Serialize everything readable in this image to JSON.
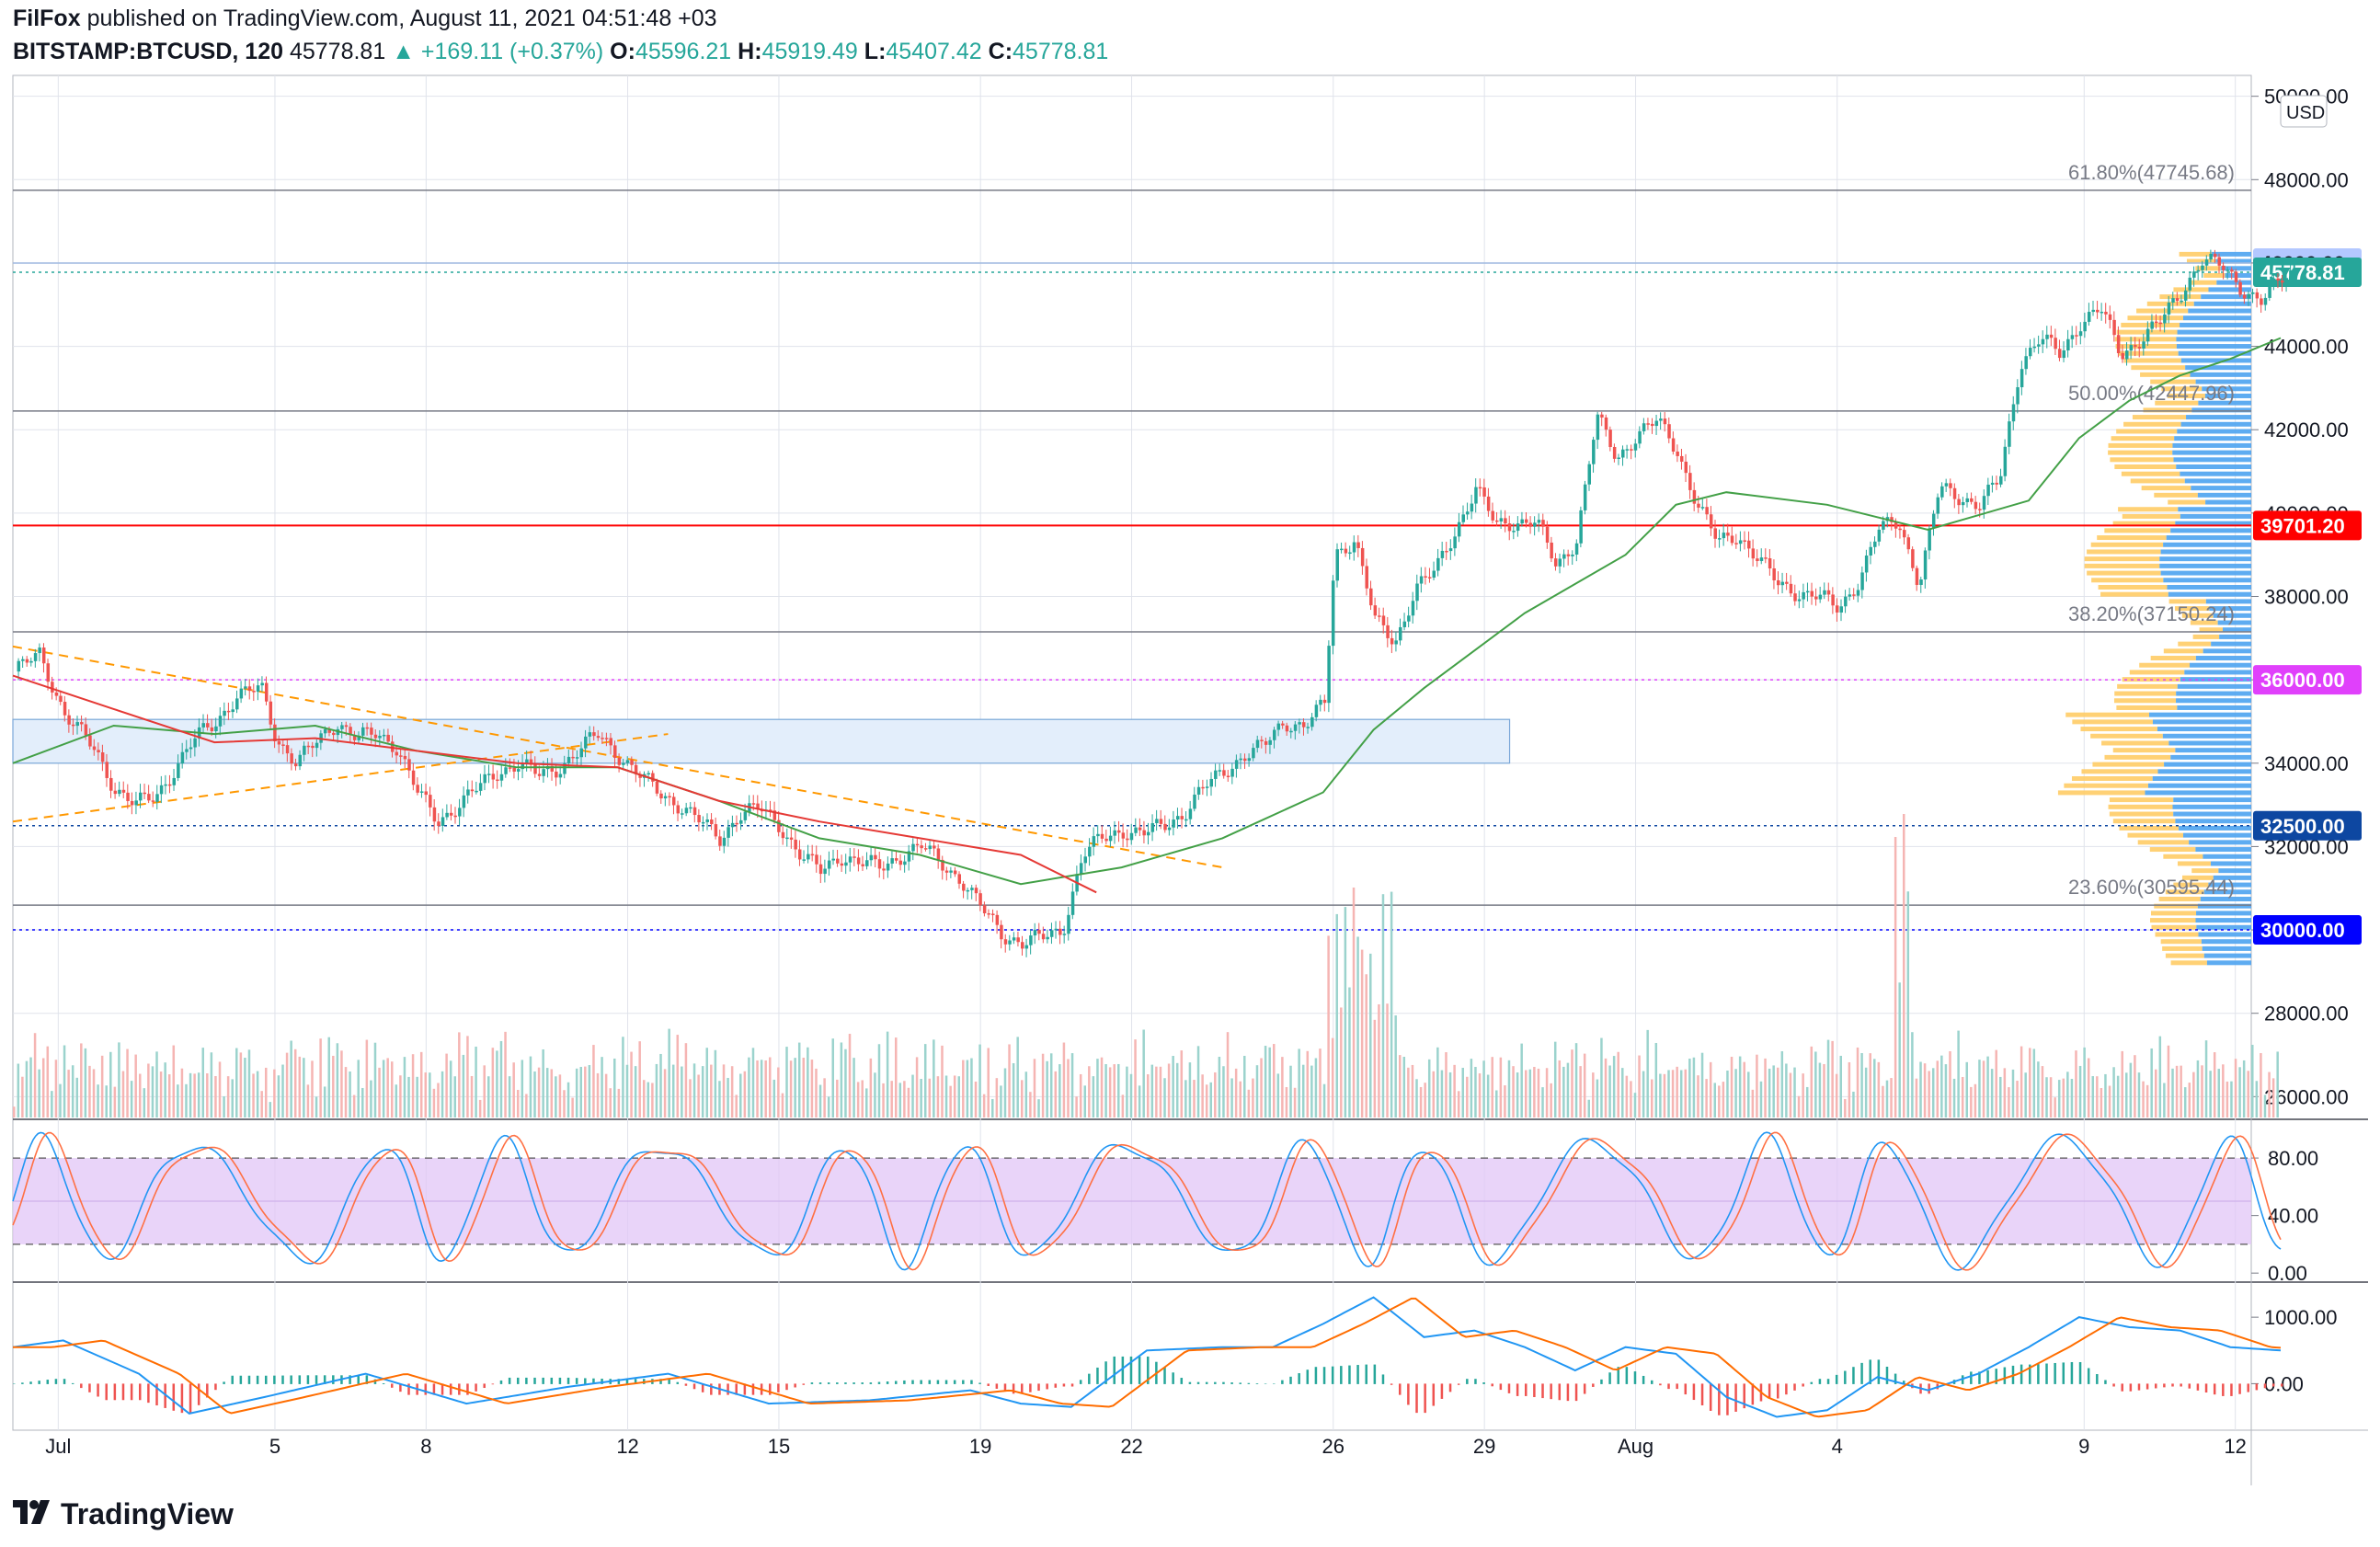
{
  "header": {
    "author": "FilFox",
    "published": "published on TradingView.com, August 11, 2021 04:51:48 +03",
    "symbol": "BITSTAMP:BTCUSD, 120",
    "last": "45778.81",
    "change": "+169.11 (+0.37%)",
    "o_label": "O:",
    "o_val": "45596.21",
    "h_label": "H:",
    "h_val": "45919.49",
    "l_label": "L:",
    "l_val": "45407.42",
    "c_label": "C:",
    "c_val": "45778.81"
  },
  "footer": {
    "brand": "TradingView"
  },
  "colors": {
    "up": "#26a69a",
    "down": "#ef5350",
    "grid": "#e0e3eb",
    "rsi_fill": "#e1c6f7",
    "ema_red": "#e53935",
    "ema_green": "#43a047",
    "trend_orange": "#ff9800",
    "level_red": "#ff0000",
    "level_magenta": "#e040fb",
    "level_blue": "#0000ff",
    "label_46000": "#b3c8ff",
    "label_current": "#26a69a",
    "label_32500": "#0d47a1",
    "vp_orange": "#ffcc66",
    "vp_blue": "#4da3f0"
  },
  "chart_data": [
    {
      "type": "line",
      "name": "price",
      "unit": "USD",
      "ylim": [
        25500,
        50500
      ],
      "y_ticks": [
        "50000.00",
        "48000.00",
        "46000.00",
        "44000.00",
        "42000.00",
        "40000.00",
        "38000.00",
        "36000.00",
        "34000.00",
        "32000.00",
        "30000.00",
        "28000.00",
        "26000.00"
      ],
      "x_ticks": [
        "Jul",
        "5",
        "8",
        "12",
        "15",
        "19",
        "22",
        "26",
        "29",
        "Aug",
        "4",
        "9",
        "12"
      ],
      "close_path": [
        [
          0,
          36200
        ],
        [
          0.5,
          36600
        ],
        [
          1.0,
          35200
        ],
        [
          1.6,
          34300
        ],
        [
          2.0,
          33400
        ],
        [
          2.4,
          33000
        ],
        [
          2.8,
          33200
        ],
        [
          3.2,
          33900
        ],
        [
          3.6,
          34600
        ],
        [
          4.0,
          35000
        ],
        [
          4.4,
          35600
        ],
        [
          4.9,
          35800
        ],
        [
          5.2,
          34600
        ],
        [
          5.6,
          34000
        ],
        [
          6.0,
          34500
        ],
        [
          6.4,
          35000
        ],
        [
          6.8,
          34600
        ],
        [
          7.2,
          34700
        ],
        [
          7.6,
          34400
        ],
        [
          8.0,
          33300
        ],
        [
          8.4,
          32600
        ],
        [
          8.8,
          33000
        ],
        [
          9.2,
          33400
        ],
        [
          9.6,
          33800
        ],
        [
          10.0,
          34000
        ],
        [
          10.4,
          33700
        ],
        [
          10.8,
          33900
        ],
        [
          11.2,
          34300
        ],
        [
          11.6,
          34700
        ],
        [
          12.0,
          34200
        ],
        [
          12.4,
          33700
        ],
        [
          12.8,
          33300
        ],
        [
          13.2,
          33000
        ],
        [
          13.6,
          32600
        ],
        [
          14.0,
          32200
        ],
        [
          14.4,
          32800
        ],
        [
          14.8,
          32900
        ],
        [
          15.2,
          32500
        ],
        [
          15.6,
          31800
        ],
        [
          16.0,
          31400
        ],
        [
          16.4,
          31800
        ],
        [
          16.8,
          31600
        ],
        [
          17.2,
          31500
        ],
        [
          17.6,
          31800
        ],
        [
          18.0,
          32000
        ],
        [
          18.4,
          31600
        ],
        [
          18.8,
          31200
        ],
        [
          19.2,
          30500
        ],
        [
          19.6,
          29900
        ],
        [
          20.0,
          29700
        ],
        [
          20.4,
          29800
        ],
        [
          20.8,
          30000
        ],
        [
          21.2,
          31800
        ],
        [
          21.6,
          32200
        ],
        [
          22.0,
          32400
        ],
        [
          22.4,
          32300
        ],
        [
          22.8,
          32500
        ],
        [
          23.2,
          32800
        ],
        [
          23.6,
          33400
        ],
        [
          24.0,
          33800
        ],
        [
          24.4,
          34200
        ],
        [
          24.8,
          34400
        ],
        [
          25.2,
          35000
        ],
        [
          25.6,
          34900
        ],
        [
          26.0,
          35400
        ],
        [
          26.2,
          39000
        ],
        [
          26.6,
          39400
        ],
        [
          27.0,
          37400
        ],
        [
          27.4,
          36900
        ],
        [
          27.8,
          38200
        ],
        [
          28.2,
          38600
        ],
        [
          28.6,
          39600
        ],
        [
          29.0,
          40600
        ],
        [
          29.4,
          39700
        ],
        [
          29.8,
          39800
        ],
        [
          30.2,
          39800
        ],
        [
          30.6,
          38700
        ],
        [
          31.0,
          39400
        ],
        [
          31.4,
          42300
        ],
        [
          31.8,
          41300
        ],
        [
          32.2,
          41900
        ],
        [
          32.6,
          42200
        ],
        [
          33.0,
          41500
        ],
        [
          33.4,
          40200
        ],
        [
          33.8,
          39300
        ],
        [
          34.2,
          39500
        ],
        [
          34.6,
          38900
        ],
        [
          35.0,
          38300
        ],
        [
          35.4,
          38100
        ],
        [
          35.8,
          38000
        ],
        [
          36.2,
          37700
        ],
        [
          36.6,
          38400
        ],
        [
          37.0,
          39600
        ],
        [
          37.4,
          39800
        ],
        [
          37.8,
          38300
        ],
        [
          38.2,
          40600
        ],
        [
          38.6,
          40400
        ],
        [
          39.0,
          40200
        ],
        [
          39.4,
          40800
        ],
        [
          39.8,
          43600
        ],
        [
          40.2,
          44200
        ],
        [
          40.6,
          43800
        ],
        [
          41.0,
          44600
        ],
        [
          41.4,
          44900
        ],
        [
          41.8,
          43800
        ],
        [
          42.2,
          44200
        ],
        [
          42.6,
          44600
        ],
        [
          43.0,
          45300
        ],
        [
          43.4,
          46100
        ],
        [
          43.8,
          45900
        ],
        [
          44.2,
          45400
        ],
        [
          44.6,
          45100
        ],
        [
          45.0,
          45600
        ],
        [
          45.2,
          45778
        ]
      ],
      "ema50_path": [
        [
          0,
          34000
        ],
        [
          2,
          34900
        ],
        [
          4,
          34700
        ],
        [
          6,
          34900
        ],
        [
          8,
          34300
        ],
        [
          10,
          33900
        ],
        [
          12,
          33900
        ],
        [
          14,
          33100
        ],
        [
          16,
          32200
        ],
        [
          18,
          31800
        ],
        [
          20,
          31100
        ],
        [
          22,
          31500
        ],
        [
          24,
          32200
        ],
        [
          26,
          33300
        ],
        [
          27,
          34800
        ],
        [
          28,
          35800
        ],
        [
          30,
          37600
        ],
        [
          32,
          39000
        ],
        [
          33,
          40200
        ],
        [
          34,
          40500
        ],
        [
          36,
          40200
        ],
        [
          38,
          39600
        ],
        [
          40,
          40300
        ],
        [
          41,
          41800
        ],
        [
          42,
          42700
        ],
        [
          43,
          43300
        ],
        [
          44,
          43700
        ],
        [
          45,
          44200
        ]
      ],
      "ema100_path": [
        [
          0,
          36100
        ],
        [
          2,
          35300
        ],
        [
          4,
          34500
        ],
        [
          6,
          34600
        ],
        [
          8,
          34300
        ],
        [
          10,
          34000
        ],
        [
          12,
          33900
        ],
        [
          14,
          33100
        ],
        [
          16,
          32600
        ],
        [
          18,
          32200
        ],
        [
          20,
          31800
        ],
        [
          21.5,
          30900
        ]
      ],
      "trendlines": [
        {
          "from": [
            0,
            36800
          ],
          "to": [
            24,
            31500
          ]
        },
        {
          "from": [
            0,
            32600
          ],
          "to": [
            13,
            34700
          ]
        }
      ],
      "zone": {
        "y0": 34000,
        "y1": 35050,
        "x0": 0,
        "x1": 29.7
      },
      "levels": [
        {
          "value": 47745.68,
          "text": "61.80%(47745.68)",
          "kind": "fib"
        },
        {
          "value": 42447.96,
          "text": "50.00%(42447.96)",
          "kind": "fib"
        },
        {
          "value": 37150.24,
          "text": "38.20%(37150.24)",
          "kind": "fib"
        },
        {
          "value": 30595.44,
          "text": "23.60%(30595.44)",
          "kind": "fib"
        },
        {
          "value": 46000.0,
          "text": "46000.00",
          "kind": "label_blue_light"
        },
        {
          "value": 45778.81,
          "text": "45778.81",
          "kind": "current"
        },
        {
          "value": 39701.2,
          "text": "39701.20",
          "kind": "red"
        },
        {
          "value": 36000.0,
          "text": "36000.00",
          "kind": "magenta"
        },
        {
          "value": 32500.0,
          "text": "32500.00",
          "kind": "navy"
        },
        {
          "value": 30000.0,
          "text": "30000.00",
          "kind": "blue"
        }
      ],
      "currency_label": "USD"
    },
    {
      "type": "line",
      "name": "stochastic",
      "ylim": [
        -5,
        105
      ],
      "y_ticks": [
        "80.00",
        "40.00",
        "0.00"
      ],
      "bands": [
        20,
        80
      ]
    },
    {
      "type": "line",
      "name": "macd",
      "ylim": [
        -700,
        1500
      ],
      "y_ticks": [
        "1000.00",
        "0.00"
      ]
    }
  ]
}
